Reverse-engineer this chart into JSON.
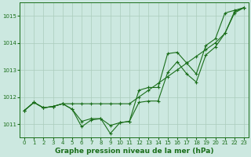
{
  "xlabel": "Graphe pression niveau de la mer (hPa)",
  "x": [
    0,
    1,
    2,
    3,
    4,
    5,
    6,
    7,
    8,
    9,
    10,
    11,
    12,
    13,
    14,
    15,
    16,
    17,
    18,
    19,
    20,
    21,
    22,
    23
  ],
  "line1": [
    1011.5,
    1011.8,
    1011.6,
    1011.65,
    1011.75,
    1011.75,
    1011.75,
    1011.75,
    1011.75,
    1011.75,
    1011.75,
    1011.75,
    1012.0,
    1012.25,
    1012.5,
    1012.75,
    1013.0,
    1013.25,
    1013.5,
    1013.75,
    1014.0,
    1014.35,
    1015.15,
    1015.3
  ],
  "line2": [
    1011.5,
    1011.8,
    1011.6,
    1011.65,
    1011.75,
    1011.55,
    1011.1,
    1011.2,
    1011.2,
    1010.95,
    1011.05,
    1011.1,
    1012.25,
    1012.35,
    1012.35,
    1013.6,
    1013.65,
    1013.25,
    1012.85,
    1013.9,
    1014.15,
    1015.1,
    1015.2,
    1015.3
  ],
  "line3": [
    1011.5,
    1011.8,
    1011.6,
    1011.65,
    1011.75,
    1011.55,
    1010.9,
    1011.15,
    1011.2,
    1010.65,
    1011.05,
    1011.1,
    1011.8,
    1011.85,
    1011.85,
    1012.9,
    1013.3,
    1012.85,
    1012.55,
    1013.55,
    1013.85,
    1014.35,
    1015.1,
    1015.3
  ],
  "ylim_min": 1010.5,
  "ylim_max": 1015.5,
  "yticks": [
    1011,
    1012,
    1013,
    1014,
    1015
  ],
  "xticks": [
    0,
    1,
    2,
    3,
    4,
    5,
    6,
    7,
    8,
    9,
    10,
    11,
    12,
    13,
    14,
    15,
    16,
    17,
    18,
    19,
    20,
    21,
    22,
    23
  ],
  "bg_color": "#cce8e0",
  "line_color": "#1a6e1a",
  "grid_color": "#aaccbb",
  "marker": "+",
  "linewidth": 0.8,
  "markersize": 3.5,
  "tick_fontsize": 5.0,
  "xlabel_fontsize": 6.5
}
